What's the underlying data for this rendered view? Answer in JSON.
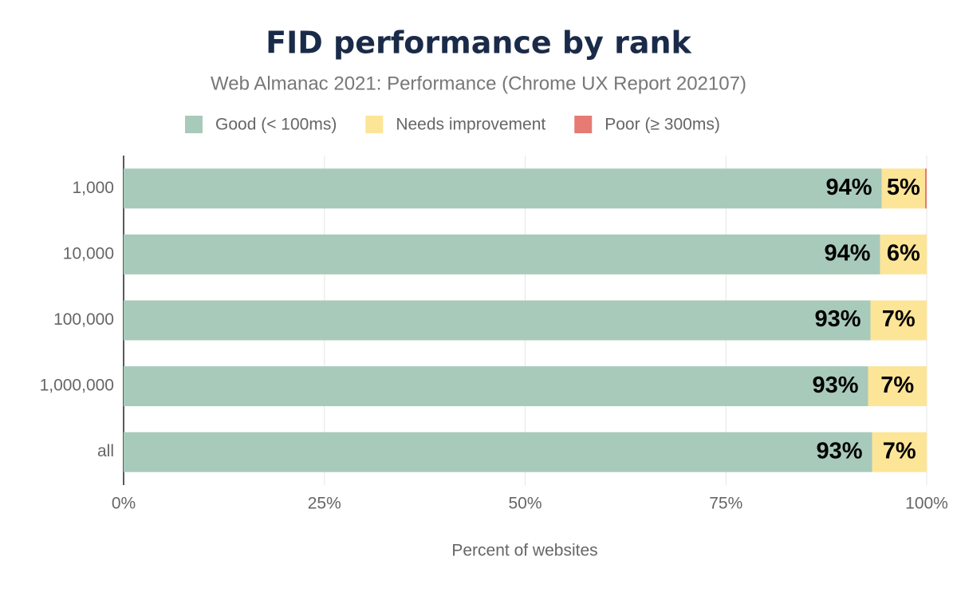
{
  "chart_data": {
    "type": "bar",
    "orientation": "horizontal",
    "stacked": true,
    "title": "FID performance by rank",
    "subtitle": "Web Almanac 2021: Performance (Chrome UX Report 202107)",
    "x_label": "Percent of websites",
    "categories": [
      "1,000",
      "10,000",
      "100,000",
      "1,000,000",
      "all"
    ],
    "series": [
      {
        "name": "Good (< 100ms)",
        "color": "#a8cabb",
        "values": [
          94.4,
          94.2,
          93.0,
          92.7,
          93.2
        ],
        "value_labels": [
          "94%",
          "94%",
          "93%",
          "93%",
          "93%"
        ]
      },
      {
        "name": "Needs improvement",
        "color": "#fde597",
        "values": [
          5.4,
          5.8,
          7.0,
          7.3,
          6.8
        ],
        "value_labels": [
          "5%",
          "6%",
          "7%",
          "7%",
          "7%"
        ]
      },
      {
        "name": "Poor (≥ 300ms)",
        "color": "#e57b73",
        "values": [
          0.2,
          0.0,
          0.0,
          0.0,
          0.0
        ]
      }
    ],
    "xlim": [
      0,
      100
    ],
    "xticks": [
      {
        "value": 0,
        "label": "0%"
      },
      {
        "value": 25,
        "label": "25%"
      },
      {
        "value": 50,
        "label": "50%"
      },
      {
        "value": 75,
        "label": "75%"
      },
      {
        "value": 100,
        "label": "100%"
      }
    ],
    "grid": true
  }
}
